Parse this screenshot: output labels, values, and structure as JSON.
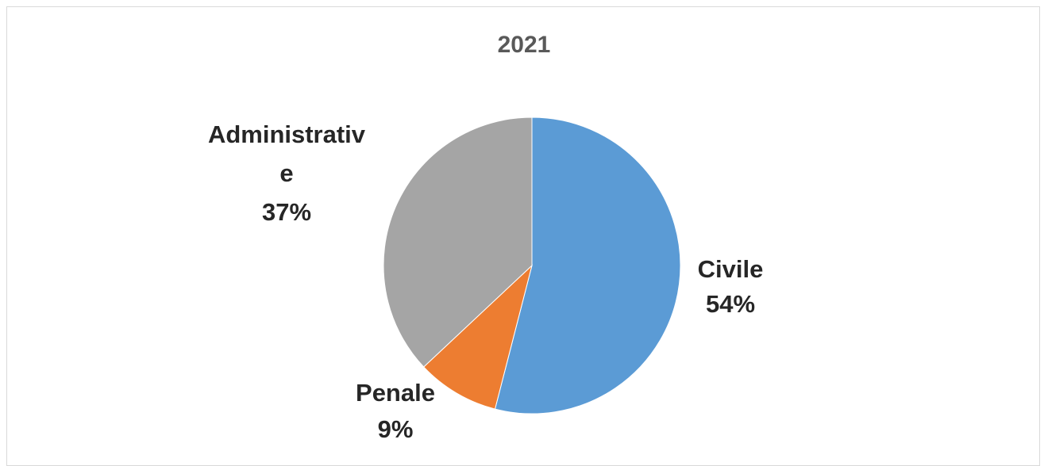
{
  "chart_data": {
    "type": "pie",
    "title": "2021",
    "slices": [
      {
        "label": "Civile",
        "value": 54,
        "value_label": "54%",
        "color": "#5b9bd5"
      },
      {
        "label": "Penale",
        "value": 9,
        "value_label": "9%",
        "color": "#ed7d31"
      },
      {
        "label": "Administrative",
        "label_lines": [
          "Administrativ",
          "e"
        ],
        "value": 37,
        "value_label": "37%",
        "color": "#a5a5a5"
      }
    ],
    "start": "12 o'clock",
    "direction": "clockwise",
    "legend": "none",
    "data_labels": "outside"
  }
}
